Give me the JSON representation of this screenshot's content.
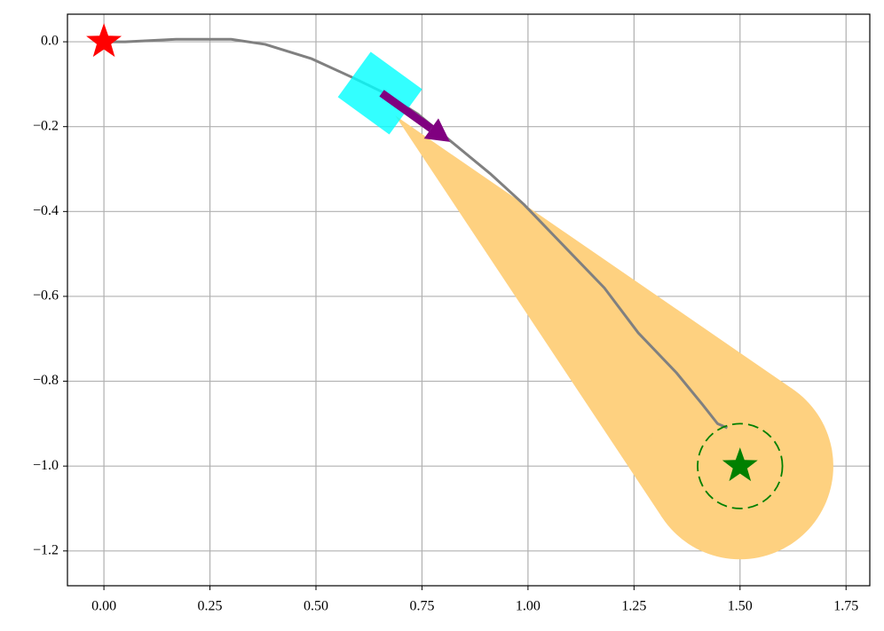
{
  "chart_data": {
    "type": "line",
    "x": [
      0,
      0.05,
      0.17,
      0.3,
      0.38,
      0.49,
      0.59,
      0.66,
      0.74,
      0.82,
      0.91,
      0.99,
      1.07,
      1.18,
      1.26,
      1.35,
      1.41,
      1.447,
      1.47
    ],
    "series": [
      {
        "color": "#808080",
        "values": [
          0,
          0,
          0.006,
          0.006,
          -0.006,
          -0.04,
          -0.086,
          -0.12,
          -0.17,
          -0.236,
          -0.31,
          -0.383,
          -0.466,
          -0.58,
          -0.686,
          -0.78,
          -0.853,
          -0.9,
          -0.91
        ]
      }
    ],
    "xlim": [
      -0.086,
      1.806
    ],
    "ylim": [
      -1.282,
      0.065
    ],
    "xticks": [
      {
        "value": 0,
        "label": "0.00"
      },
      {
        "value": 0.25,
        "label": "0.25"
      },
      {
        "value": 0.5,
        "label": "0.50"
      },
      {
        "value": 0.75,
        "label": "0.75"
      },
      {
        "value": 1,
        "label": "1.00"
      },
      {
        "value": 1.25,
        "label": "1.25"
      },
      {
        "value": 1.5,
        "label": "1.50"
      },
      {
        "value": 1.75,
        "label": "1.75"
      }
    ],
    "yticks": [
      {
        "value": 0,
        "label": "0.0"
      },
      {
        "value": -0.2,
        "label": "−0.2"
      },
      {
        "value": -0.4,
        "label": "−0.4"
      },
      {
        "value": -0.6,
        "label": "−0.6"
      },
      {
        "value": -0.8,
        "label": "−0.8"
      },
      {
        "value": -1,
        "label": "−1.0"
      },
      {
        "value": -1.2,
        "label": "−1.2"
      }
    ],
    "grid": true,
    "cone": {
      "apex_x": 0.687,
      "apex_y": -0.174,
      "center_x": 1.5,
      "center_y": -1.0,
      "radius": 0.22,
      "color": "#fed180"
    },
    "start": {
      "x": 0,
      "y": 0,
      "color": "#ff0000"
    },
    "goal": {
      "x": 1.5,
      "y": -1.0,
      "radius": 0.1,
      "color": "#008000"
    },
    "robot": {
      "x": 0.651,
      "y": -0.121,
      "width": 0.15,
      "height": 0.132,
      "angle": -36,
      "color": "#00ffff"
    },
    "heading": {
      "x1": 0.655,
      "y1": -0.121,
      "x2": 0.816,
      "y2": -0.236,
      "color": "#800080"
    }
  }
}
